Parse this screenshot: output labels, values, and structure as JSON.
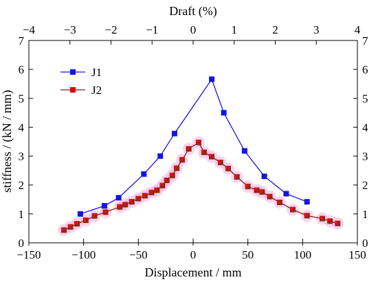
{
  "chart_data": {
    "type": "line",
    "xlabel": "Displacement / mm",
    "ylabel": "stiffness / (kN / mm)",
    "top_axis_label": "Draft (%)",
    "xlim": [
      -150,
      150
    ],
    "ylim": [
      0,
      7
    ],
    "top_xlim": [
      -4,
      4
    ],
    "x_ticks": [
      "−150",
      "−100",
      "−50",
      "0",
      "50",
      "100",
      "150"
    ],
    "y_ticks": [
      "0",
      "1",
      "2",
      "3",
      "4",
      "5",
      "6",
      "7"
    ],
    "top_ticks": [
      "−4",
      "−3",
      "−2",
      "−1",
      "0",
      "1",
      "2",
      "3",
      "4"
    ],
    "legend_position": "upper-left",
    "grid": false,
    "series": [
      {
        "name": "J1",
        "color": "#1414e6",
        "marker": "square",
        "points": [
          [
            -103,
            1.0
          ],
          [
            -81,
            1.28
          ],
          [
            -68,
            1.56
          ],
          [
            -45,
            2.38
          ],
          [
            -30,
            3.0
          ],
          [
            -17,
            3.78
          ],
          [
            17,
            5.66
          ],
          [
            28,
            4.5
          ],
          [
            47,
            3.18
          ],
          [
            65,
            2.3
          ],
          [
            85,
            1.7
          ],
          [
            104,
            1.42
          ]
        ]
      },
      {
        "name": "J2",
        "color": "#d00000",
        "marker": "square",
        "band_color": "#f5b8e8",
        "points": [
          [
            -118,
            0.44
          ],
          [
            -112,
            0.55
          ],
          [
            -106,
            0.66
          ],
          [
            -98,
            0.78
          ],
          [
            -90,
            0.93
          ],
          [
            -80,
            1.06
          ],
          [
            -67,
            1.24
          ],
          [
            -62,
            1.32
          ],
          [
            -56,
            1.42
          ],
          [
            -50,
            1.53
          ],
          [
            -44,
            1.63
          ],
          [
            -38,
            1.74
          ],
          [
            -33,
            1.82
          ],
          [
            -28,
            1.98
          ],
          [
            -24,
            2.16
          ],
          [
            -19,
            2.33
          ],
          [
            -15,
            2.58
          ],
          [
            -10,
            2.87
          ],
          [
            -4,
            3.25
          ],
          [
            5,
            3.47
          ],
          [
            10,
            3.13
          ],
          [
            17,
            2.98
          ],
          [
            25,
            2.78
          ],
          [
            32,
            2.57
          ],
          [
            40,
            2.28
          ],
          [
            50,
            1.95
          ],
          [
            58,
            1.82
          ],
          [
            63,
            1.76
          ],
          [
            70,
            1.6
          ],
          [
            79,
            1.4
          ],
          [
            91,
            1.15
          ],
          [
            104,
            0.94
          ],
          [
            118,
            0.84
          ],
          [
            125,
            0.75
          ],
          [
            132,
            0.67
          ]
        ]
      }
    ]
  }
}
